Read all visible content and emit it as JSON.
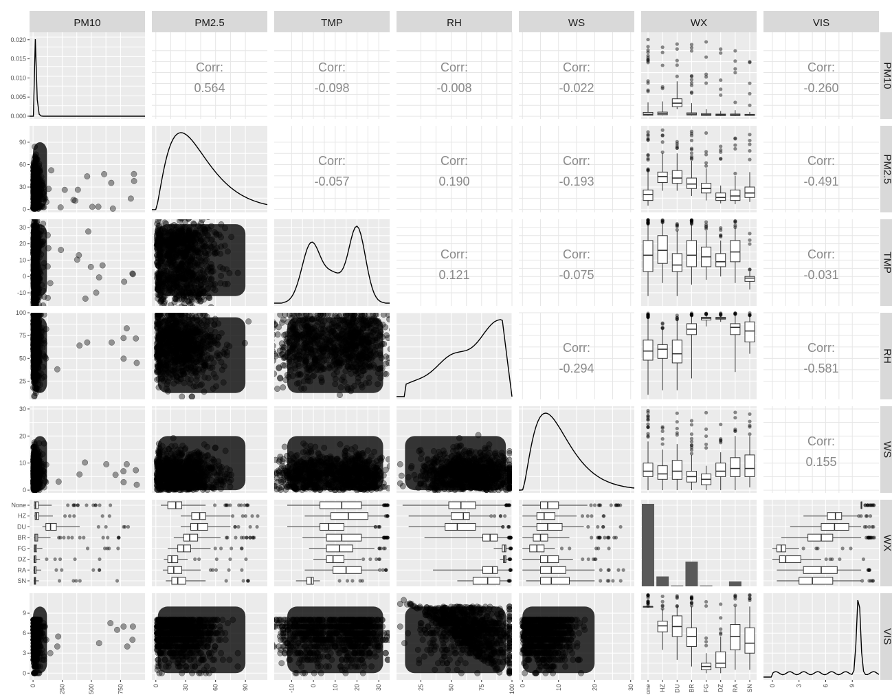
{
  "chart_data": {
    "type": "scatter-matrix",
    "variables": [
      "PM10",
      "PM2.5",
      "TMP",
      "RH",
      "WS",
      "WX",
      "VIS"
    ],
    "wx_categories": [
      "None",
      "HZ",
      "DU",
      "BR",
      "FG",
      "DZ",
      "RA",
      "SN"
    ],
    "wx_bottom_labels": [
      "one",
      "HZ",
      "DU",
      "BR",
      "FG",
      "DZ",
      "RA",
      "SN"
    ],
    "ranges": {
      "PM10": [
        -30,
        960
      ],
      "PM2.5": [
        -4,
        112
      ],
      "TMP": [
        -18,
        35
      ],
      "RH": [
        5,
        100
      ],
      "WS": [
        -1,
        31
      ],
      "VIS": [
        -1,
        12
      ]
    },
    "ticks": {
      "PM10": [
        0,
        250,
        500,
        750
      ],
      "PM2.5": [
        0,
        30,
        60,
        90
      ],
      "TMP": [
        -10,
        0,
        10,
        20,
        30
      ],
      "RH": [
        25,
        50,
        75,
        100
      ],
      "WS": [
        0,
        10,
        20,
        30
      ],
      "VIS": [
        0,
        3,
        6,
        9
      ]
    },
    "y_ticks": {
      "PM10_density": [
        {
          "v": 0.0,
          "label": "0.000"
        },
        {
          "v": 0.005,
          "label": "0.005"
        },
        {
          "v": 0.01,
          "label": "0.010"
        },
        {
          "v": 0.015,
          "label": "0.015"
        },
        {
          "v": 0.02,
          "label": "0.020"
        }
      ],
      "PM2.5": [
        0,
        30,
        60,
        90
      ],
      "TMP": [
        -10,
        0,
        10,
        20,
        30
      ],
      "RH": [
        25,
        50,
        75,
        100
      ],
      "WS": [
        0,
        10,
        20,
        30
      ],
      "VIS": [
        0,
        3,
        6,
        9
      ]
    },
    "correlations": [
      {
        "row": "PM10",
        "col": "PM2.5",
        "label": "Corr:",
        "value": "0.564"
      },
      {
        "row": "PM10",
        "col": "TMP",
        "label": "Corr:",
        "value": "-0.098"
      },
      {
        "row": "PM10",
        "col": "RH",
        "label": "Corr:",
        "value": "-0.008"
      },
      {
        "row": "PM10",
        "col": "WS",
        "label": "Corr:",
        "value": "-0.022"
      },
      {
        "row": "PM10",
        "col": "VIS",
        "label": "Corr:",
        "value": "-0.260"
      },
      {
        "row": "PM2.5",
        "col": "TMP",
        "label": "Corr:",
        "value": "-0.057"
      },
      {
        "row": "PM2.5",
        "col": "RH",
        "label": "Corr:",
        "value": "0.190"
      },
      {
        "row": "PM2.5",
        "col": "WS",
        "label": "Corr:",
        "value": "-0.193"
      },
      {
        "row": "PM2.5",
        "col": "VIS",
        "label": "Corr:",
        "value": "-0.491"
      },
      {
        "row": "TMP",
        "col": "RH",
        "label": "Corr:",
        "value": "0.121"
      },
      {
        "row": "TMP",
        "col": "WS",
        "label": "Corr:",
        "value": "-0.075"
      },
      {
        "row": "TMP",
        "col": "VIS",
        "label": "Corr:",
        "value": "-0.031"
      },
      {
        "row": "RH",
        "col": "WS",
        "label": "Corr:",
        "value": "-0.294"
      },
      {
        "row": "RH",
        "col": "VIS",
        "label": "Corr:",
        "value": "-0.581"
      },
      {
        "row": "WS",
        "col": "VIS",
        "label": "Corr:",
        "value": "0.155"
      }
    ],
    "wx_counts": [
      100,
      12,
      1,
      30,
      1,
      0,
      6,
      0
    ],
    "wx_boxplots": {
      "PM10": [
        [
          6,
          12,
          22,
          45,
          160
        ],
        [
          10,
          18,
          30,
          48,
          170
        ],
        [
          80,
          110,
          150,
          200,
          400
        ],
        [
          8,
          15,
          25,
          40,
          150
        ],
        [
          5,
          10,
          18,
          30,
          80
        ],
        [
          4,
          8,
          15,
          25,
          60
        ],
        [
          3,
          8,
          15,
          26,
          70
        ],
        [
          5,
          10,
          15,
          22,
          50
        ]
      ],
      "PM2.5": [
        [
          5,
          12,
          20,
          26,
          50
        ],
        [
          25,
          36,
          44,
          50,
          75
        ],
        [
          25,
          35,
          42,
          52,
          75
        ],
        [
          18,
          28,
          34,
          42,
          65
        ],
        [
          12,
          22,
          28,
          35,
          55
        ],
        [
          8,
          12,
          16,
          22,
          32
        ],
        [
          7,
          12,
          18,
          26,
          45
        ],
        [
          10,
          16,
          22,
          30,
          50
        ]
      ],
      "TMP": [
        [
          -12,
          3,
          13,
          22,
          32
        ],
        [
          -4,
          8,
          16,
          25,
          33
        ],
        [
          -12,
          3,
          7,
          14,
          28
        ],
        [
          -5,
          6,
          13,
          22,
          32
        ],
        [
          -2,
          6,
          12,
          18,
          28
        ],
        [
          0,
          6,
          9,
          14,
          22
        ],
        [
          -4,
          9,
          15,
          22,
          30
        ],
        [
          -8,
          -3,
          -1,
          0,
          3
        ]
      ],
      "RH": [
        [
          10,
          48,
          58,
          70,
          95
        ],
        [
          15,
          50,
          60,
          65,
          82
        ],
        [
          15,
          45,
          55,
          70,
          92
        ],
        [
          28,
          76,
          82,
          88,
          97
        ],
        [
          85,
          92,
          94,
          95,
          98
        ],
        [
          90,
          93,
          94,
          95,
          97
        ],
        [
          35,
          76,
          84,
          88,
          98
        ],
        [
          55,
          68,
          80,
          90,
          97
        ]
      ],
      "WS": [
        [
          0,
          5,
          7,
          10,
          18
        ],
        [
          0,
          4,
          6,
          9,
          15
        ],
        [
          0,
          4,
          7,
          11,
          17
        ],
        [
          0,
          3,
          5,
          7,
          13
        ],
        [
          0,
          2,
          4,
          6,
          9
        ],
        [
          0,
          5,
          7,
          10,
          14
        ],
        [
          0,
          5,
          8,
          12,
          20
        ],
        [
          1,
          5,
          8,
          13,
          20
        ]
      ],
      "VIS": [
        [
          10,
          10,
          10,
          10,
          10
        ],
        [
          3.5,
          6.2,
          7.1,
          7.8,
          9.6
        ],
        [
          2,
          5.5,
          7,
          8.6,
          10
        ],
        [
          1,
          4,
          5.5,
          6.8,
          10
        ],
        [
          0,
          0.5,
          1,
          1.5,
          3
        ],
        [
          0,
          0.8,
          1.5,
          3.2,
          5.5
        ],
        [
          0.5,
          3.5,
          5.5,
          7.3,
          10
        ],
        [
          0.5,
          3,
          4.5,
          6.8,
          10
        ]
      ]
    }
  }
}
